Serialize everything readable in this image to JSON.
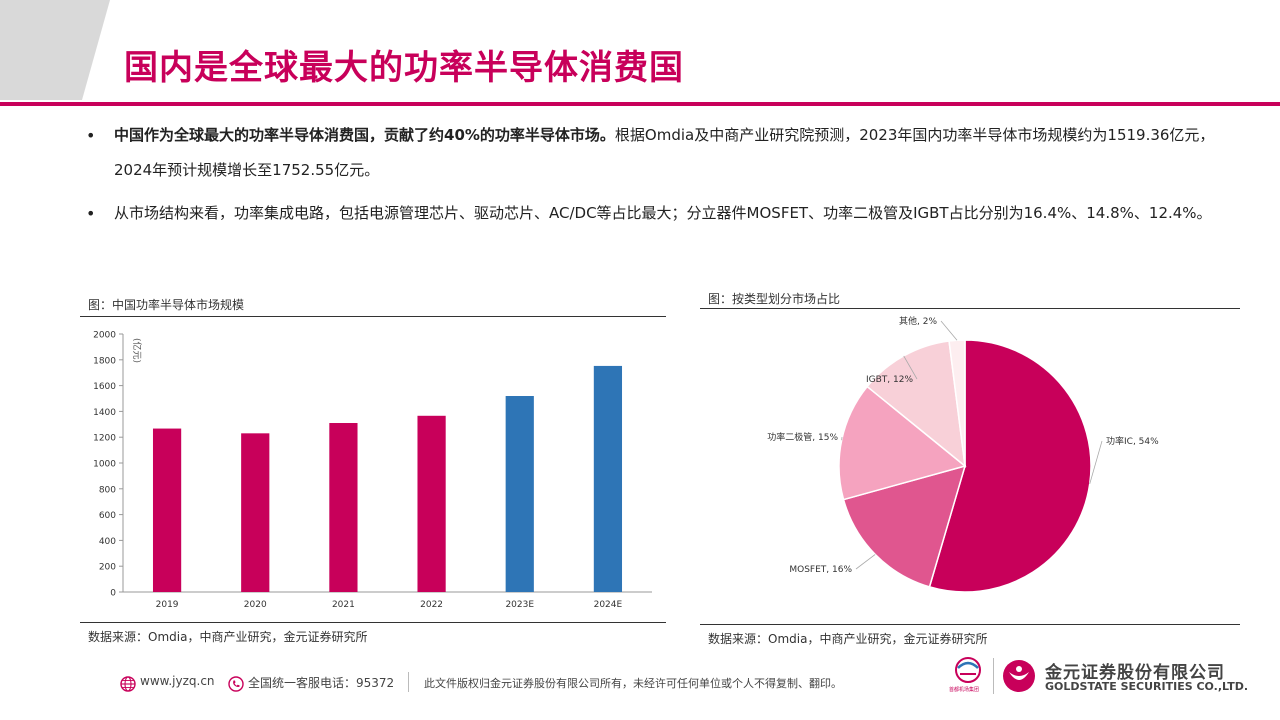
{
  "title": "国内是全球最大的功率半导体消费国",
  "bullets": [
    {
      "bold": "中国作为全球最大的功率半导体消费国，贡献了约40%的功率半导体市场。",
      "rest": "根据Omdia及中商产业研究院预测，2023年国内功率半导体市场规模约为1519.36亿元，2024年预计规模增长至1752.55亿元。"
    },
    {
      "bold": "",
      "rest": "从市场结构来看，功率集成电路，包括电源管理芯片、驱动芯片、AC/DC等占比最大；分立器件MOSFET、功率二极管及IGBT占比分别为16.4%、14.8%、12.4%。"
    }
  ],
  "bullet_symbol": "•",
  "bar_chart": {
    "fig_title": "图：中国功率半导体市场规模",
    "source": "数据来源：Omdia，中商产业研究，金元证券研究所"
  },
  "pie_chart": {
    "fig_title": "图：按类型划分市场占比",
    "source": "数据来源：Omdia，中商产业研究，金元证券研究所"
  },
  "chart_data": [
    {
      "type": "bar",
      "ylabel": "(亿元)",
      "ylim": [
        0,
        2000
      ],
      "yticks": [
        0,
        200,
        400,
        600,
        800,
        1000,
        1200,
        1400,
        1600,
        1800,
        2000
      ],
      "categories": [
        "2019",
        "2020",
        "2021",
        "2022",
        "2023E",
        "2024E"
      ],
      "values": [
        1267,
        1230,
        1310,
        1366,
        1519.36,
        1752.55
      ],
      "colors": [
        "#c8005a",
        "#c8005a",
        "#c8005a",
        "#c8005a",
        "#2e75b6",
        "#2e75b6"
      ],
      "grid": false
    },
    {
      "type": "pie",
      "slices": [
        {
          "label": "功率IC, 54%",
          "value": 54,
          "color": "#c8005a"
        },
        {
          "label": "MOSFET, 16%",
          "value": 16,
          "color": "#e0568f"
        },
        {
          "label": "功率二极管, 15%",
          "value": 15,
          "color": "#f5a3bf"
        },
        {
          "label": "IGBT, 12%",
          "value": 12,
          "color": "#f8d0d8"
        },
        {
          "label": "其他, 2%",
          "value": 2,
          "color": "#fdeef0"
        }
      ]
    }
  ],
  "footer": {
    "website": "www.jyzq.cn",
    "hotline": "全国统一客服电话：95372",
    "copyright": "此文件版权归金元证券股份有限公司所有，未经许可任何单位或个人不得复制、翻印。",
    "company_cn": "金元证券股份有限公司",
    "company_en": "GOLDSTATE SECURITIES  CO.,LTD.",
    "group_name": "首都机场集团"
  },
  "colors": {
    "accent": "#c8005a",
    "forecast": "#2e75b6"
  }
}
